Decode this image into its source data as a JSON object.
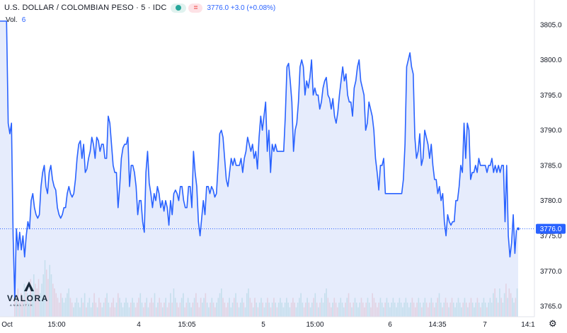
{
  "header": {
    "title": "U.S. DOLLAR / COLOMBIAN PESO · 5 · IDC",
    "market_status_icon": "green-dot-icon",
    "compare_icon": "equals-icon",
    "compare_symbol": "=",
    "last_price": "3776.0",
    "change": "+3.0",
    "change_pct": "(+0.08%)"
  },
  "volume": {
    "label": "Vol.",
    "value": "6"
  },
  "logo": {
    "name": "VALORA",
    "sub": "ANALITIK"
  },
  "colors": {
    "line": "#2962ff",
    "area": "#dde6fb",
    "vol_up": "#80cbc4",
    "vol_down": "#ef9a9a",
    "axis_text": "#131722",
    "last_label_bg": "#2962ff"
  },
  "chart_data": {
    "type": "area",
    "title": "U.S. DOLLAR / COLOMBIAN PESO · 5 · IDC",
    "ylim": [
      3763.5,
      3808.5
    ],
    "grid": false,
    "y_ticks": [
      "3805.0",
      "3800.0",
      "3795.0",
      "3790.0",
      "3785.0",
      "3780.0",
      "3775.0",
      "3770.0",
      "3765.0"
    ],
    "x_ticks": [
      "Oct",
      "15:00",
      "4",
      "15:05",
      "5",
      "15:00",
      "6",
      "14:35",
      "7",
      "14:1"
    ],
    "last_value": "3776.0",
    "series": [
      {
        "values": [
          3805.5,
          3805.5,
          3805.5,
          3805.5,
          3805.5,
          3791,
          3789.5,
          3791,
          3775,
          3766,
          3776,
          3773,
          3775.5,
          3773,
          3775,
          3772,
          3775,
          3777,
          3776,
          3780,
          3781,
          3779,
          3778,
          3777.5,
          3778,
          3782,
          3784,
          3785,
          3782,
          3781,
          3784,
          3785,
          3783,
          3782,
          3781.5,
          3779,
          3778,
          3777.5,
          3778,
          3779,
          3779,
          3781,
          3782,
          3781,
          3780.5,
          3781,
          3783,
          3786,
          3788,
          3788.5,
          3786,
          3788,
          3784,
          3784.5,
          3786,
          3787,
          3789,
          3788,
          3786,
          3789,
          3788.5,
          3787,
          3788,
          3788,
          3786,
          3786,
          3792,
          3791,
          3788,
          3785,
          3784,
          3784,
          3779,
          3782,
          3786,
          3787.5,
          3788,
          3788,
          3789,
          3782,
          3785,
          3785,
          3784,
          3782,
          3778,
          3780,
          3780,
          3777,
          3775.5,
          3784,
          3787,
          3782.5,
          3781,
          3779,
          3781,
          3780,
          3782,
          3781,
          3779,
          3780,
          3778.5,
          3780,
          3779,
          3776.5,
          3780,
          3778,
          3781,
          3781.5,
          3781,
          3780,
          3782,
          3782,
          3780,
          3779,
          3779,
          3782,
          3782,
          3779,
          3787,
          3784,
          3782,
          3777,
          3775,
          3777.5,
          3780,
          3778,
          3782,
          3782,
          3781,
          3782,
          3781.5,
          3780.5,
          3781,
          3785,
          3789.5,
          3790,
          3789,
          3786,
          3783,
          3782,
          3784,
          3786,
          3785,
          3786,
          3785,
          3785,
          3785,
          3786,
          3784,
          3786,
          3787,
          3789,
          3788,
          3787,
          3788,
          3786,
          3787,
          3784.5,
          3789,
          3792,
          3790,
          3792,
          3794,
          3787,
          3790,
          3784,
          3788,
          3787,
          3788,
          3787,
          3787,
          3787,
          3787,
          3787,
          3792,
          3799,
          3799.5,
          3797,
          3794,
          3787,
          3790,
          3791,
          3794,
          3799,
          3800,
          3799,
          3795,
          3797,
          3796,
          3797.5,
          3800,
          3795,
          3796,
          3795,
          3795,
          3793,
          3794,
          3796,
          3797,
          3797.5,
          3795,
          3794.5,
          3793,
          3794.5,
          3792,
          3791,
          3792.5,
          3795,
          3797,
          3799,
          3797,
          3798,
          3795,
          3794,
          3794,
          3792,
          3796,
          3797,
          3799,
          3800,
          3797,
          3796,
          3795,
          3790,
          3791,
          3794,
          3793,
          3792,
          3790,
          3786,
          3784,
          3781.5,
          3785,
          3785,
          3786,
          3781,
          3781,
          3781,
          3781,
          3781,
          3781,
          3781,
          3781,
          3781,
          3781,
          3781,
          3783,
          3788,
          3799,
          3800,
          3801,
          3799,
          3798,
          3789,
          3786,
          3787,
          3789.5,
          3785,
          3786,
          3790,
          3789,
          3788,
          3786,
          3788,
          3785,
          3783,
          3783,
          3781,
          3782,
          3780,
          3781,
          3777,
          3775,
          3778,
          3777,
          3776.5,
          3777,
          3777,
          3780,
          3780,
          3782,
          3785,
          3784,
          3791,
          3786,
          3791,
          3790,
          3783,
          3784,
          3784,
          3785,
          3784,
          3786,
          3785,
          3785,
          3785,
          3785,
          3784,
          3785,
          3785,
          3786,
          3784,
          3785,
          3784,
          3785,
          3784,
          3785,
          3785,
          3777,
          3785,
          3775,
          3772,
          3774,
          3778,
          3772.5,
          3776,
          3776
        ]
      }
    ],
    "volume": [
      5,
      4,
      6,
      3,
      5,
      4,
      7,
      6,
      5,
      3,
      8,
      6,
      9,
      7,
      6,
      8,
      5,
      7,
      9,
      12,
      10,
      8,
      11,
      9,
      7,
      6,
      5,
      4,
      3,
      5,
      4,
      3,
      4,
      5,
      6,
      4,
      3,
      2,
      3,
      4,
      3,
      2,
      4,
      3,
      5,
      2,
      3,
      4,
      2,
      3,
      5,
      3,
      2,
      4,
      3,
      2,
      3,
      4,
      5,
      3,
      2,
      3,
      4,
      2,
      3,
      5,
      4,
      3,
      2,
      3,
      4,
      3,
      2,
      3,
      4,
      3,
      2,
      3,
      4,
      5,
      3,
      2,
      3,
      4,
      2,
      3,
      4,
      3,
      5,
      2,
      3,
      4,
      3,
      2,
      3,
      4,
      2,
      3,
      5,
      3,
      6,
      4,
      3,
      2,
      3,
      4,
      5,
      2,
      3,
      4,
      3,
      2,
      3,
      4,
      5,
      3,
      2,
      4,
      3,
      4,
      5,
      3,
      2,
      3,
      4,
      3,
      2,
      3,
      4,
      5,
      6,
      4,
      3,
      2,
      3,
      4,
      2,
      3,
      4,
      5,
      3,
      2,
      3,
      4,
      3,
      2,
      5,
      6,
      4,
      3,
      2,
      4,
      3,
      2,
      3,
      4,
      3,
      2,
      3,
      4,
      3,
      2,
      3,
      4,
      3,
      2,
      3,
      4,
      3,
      2,
      3,
      4,
      3,
      2,
      3,
      4,
      3,
      2,
      3,
      4,
      5,
      3,
      2,
      3,
      4,
      3,
      2,
      3,
      4,
      5,
      3,
      2,
      3,
      4,
      3,
      5,
      6,
      4,
      3,
      2,
      3,
      4,
      3,
      2,
      3,
      4,
      3,
      2,
      3,
      4,
      5,
      3,
      2,
      3,
      4,
      3,
      2,
      3,
      4,
      3,
      2,
      3,
      4,
      3,
      2,
      5,
      4,
      3,
      2,
      3,
      4,
      3,
      2,
      3,
      4,
      3,
      2,
      3,
      4,
      3,
      2,
      3,
      4,
      3,
      2,
      3,
      4,
      3,
      2,
      3,
      4,
      3,
      2,
      3,
      4,
      3,
      2,
      3,
      4,
      3,
      2,
      3,
      4,
      3,
      2,
      3,
      4,
      5,
      3,
      2,
      3,
      4,
      3,
      2,
      3,
      4,
      3,
      2,
      3,
      4,
      3,
      2,
      3,
      4,
      3,
      2,
      3,
      4,
      3,
      2,
      3,
      4,
      3,
      2,
      3,
      4,
      3,
      2,
      3,
      4,
      3,
      5,
      6,
      4,
      3,
      6,
      4,
      3,
      5,
      7,
      4,
      6,
      5,
      4,
      3,
      4,
      6
    ]
  }
}
